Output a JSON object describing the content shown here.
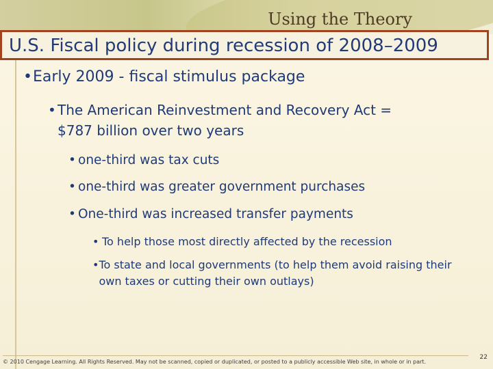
{
  "header": {
    "brand_text": "Using the Theory",
    "title": "U.S. Fiscal policy during recession of 2008–2009"
  },
  "content": {
    "level1": "Early 2009 - fiscal stimulus package",
    "level2_line1": "The American Reinvestment and Recovery Act =",
    "level2_line2": "$787 billion over two years",
    "level3": [
      "one-third was tax cuts",
      "one-third was greater government purchases",
      "One-third was increased transfer payments"
    ],
    "level4": [
      "To help those most directly affected by the recession",
      "To state and local governments (to help them avoid raising their own taxes or cutting their own outlays)"
    ]
  },
  "footer": {
    "copyright": "© 2010 Cengage Learning. All Rights Reserved. May not be scanned, copied or duplicated, or posted to a publicly accessible Web site, in whole or in part.",
    "page_number": "22"
  },
  "colors": {
    "title_border": "#a1431e",
    "text": "#1f3a78",
    "background": "#f7f1dc"
  }
}
